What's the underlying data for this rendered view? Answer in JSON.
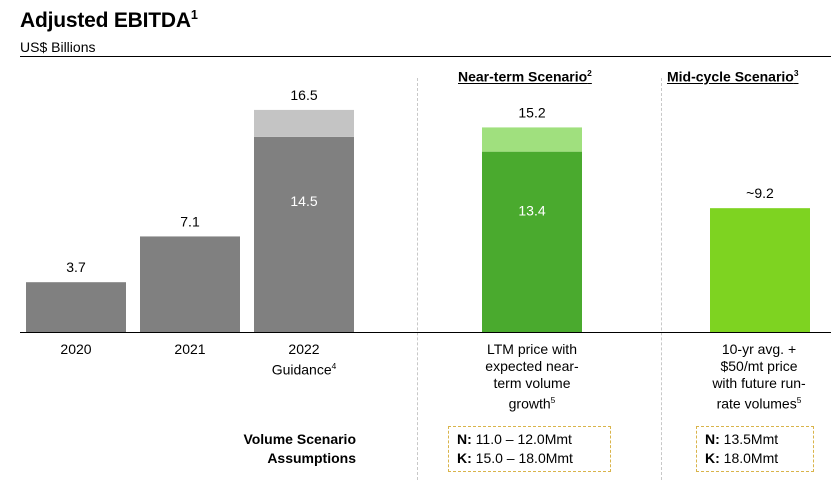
{
  "header": {
    "title": "Adjusted EBITDA",
    "title_sup": "1",
    "subtitle": "US$ Billions"
  },
  "sections": {
    "near_term": {
      "label": "Near-term Scenario",
      "sup": "2"
    },
    "mid_cycle": {
      "label": "Mid-cycle Scenario",
      "sup": "3"
    }
  },
  "chart_data": {
    "type": "bar",
    "stacked": true,
    "categories": [
      "2020",
      "2021",
      "2022 Guidance",
      "LTM price with expected near-term volume growth",
      "10-yr avg. + $50/mt price with future run-rate volumes"
    ],
    "series": [
      {
        "values": [
          3.7,
          7.1,
          14.5,
          13.4,
          9.2
        ],
        "colors": [
          "#808080",
          "#808080",
          "#808080",
          "#4aaa2e",
          "#7ed321"
        ]
      },
      {
        "values": [
          0,
          0,
          2.0,
          1.8,
          0
        ],
        "colors": [
          "#c4c4c4",
          "#c4c4c4",
          "#c4c4c4",
          "#a0e07e",
          "#7ed321"
        ]
      }
    ],
    "total_labels": [
      "3.7",
      "7.1",
      "16.5",
      "15.2",
      "~9.2"
    ],
    "inner_labels": [
      "",
      "",
      "14.5",
      "13.4",
      ""
    ],
    "ylim": [
      0,
      18.5
    ],
    "grid": false,
    "legend": "none"
  },
  "captions": {
    "c2020": "2020",
    "c2021": "2021",
    "c2022_line1": "2022",
    "c2022_line2": "Guidance",
    "c2022_sup": "4",
    "near_line1": "LTM price with",
    "near_line2": "expected near-",
    "near_line3": "term volume",
    "near_line4": "growth",
    "near_sup": "5",
    "mid_line1": "10-yr avg. +",
    "mid_line2": "$50/mt price",
    "mid_line3": "with future run-",
    "mid_line4": "rate volumes",
    "mid_sup": "5"
  },
  "assumptions": {
    "label_line1": "Volume Scenario",
    "label_line2": "Assumptions",
    "near": {
      "n_key": "N:",
      "n_val": "11.0 – 12.0Mmt",
      "k_key": "K:",
      "k_val": "15.0 – 18.0Mmt"
    },
    "mid": {
      "n_key": "N:",
      "n_val": "13.5Mmt",
      "k_key": "K:",
      "k_val": "18.0Mmt"
    }
  }
}
